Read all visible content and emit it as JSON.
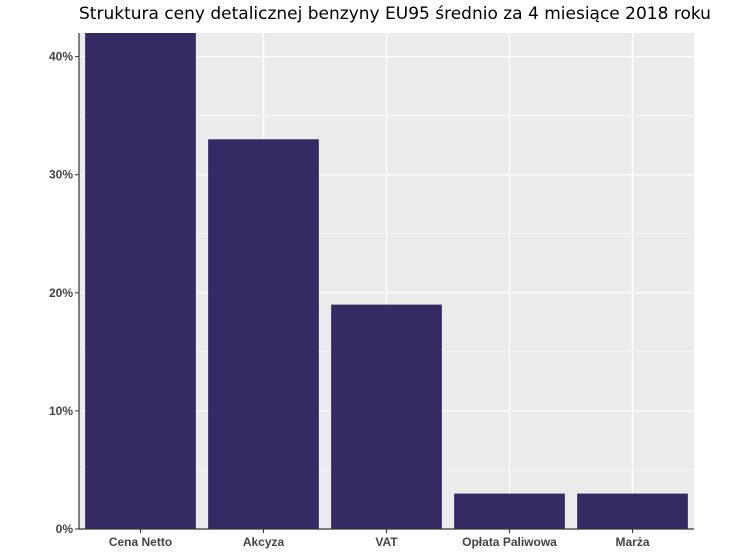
{
  "chart_data": {
    "type": "bar",
    "title": "Struktura ceny detalicznej benzyny EU95 średnio za 4 miesiące 2018 roku",
    "xlabel": "",
    "ylabel": "",
    "categories": [
      "Cena Netto",
      "Akcyza",
      "VAT",
      "Opłata Paliwowa",
      "Marża"
    ],
    "values": [
      42,
      33,
      19,
      3,
      3
    ],
    "ylim": [
      0,
      42
    ],
    "y_ticks": [
      0,
      10,
      20,
      30,
      40
    ],
    "y_tick_labels": [
      "0%",
      "10%",
      "20%",
      "30%",
      "40%"
    ],
    "grid": true,
    "legend": "none",
    "colors": {
      "bar": "#352a63",
      "panel": "#ebebeb",
      "grid": "#ffffff",
      "axis": "#333333"
    }
  }
}
